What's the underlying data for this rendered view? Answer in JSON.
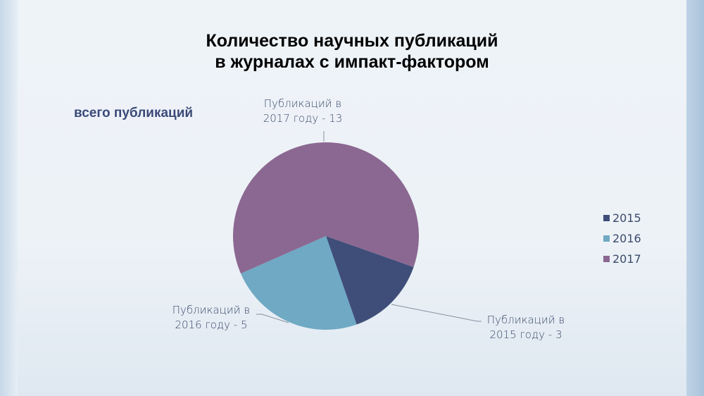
{
  "chart_data": {
    "type": "pie",
    "title": "Количество научных публикаций\nв журналах с импакт-фактором",
    "title_line1": "Количество научных публикаций",
    "title_line2": "в журналах с импакт-фактором",
    "subtitle": "всего публикаций",
    "categories": [
      "2015",
      "2016",
      "2017"
    ],
    "values": [
      3,
      5,
      13
    ],
    "colors": [
      "#3f4e78",
      "#6fa9c4",
      "#8b6891"
    ],
    "data_labels": [
      [
        "Публикаций в",
        "2015 году - 3"
      ],
      [
        "Публикаций в",
        "2016 году - 5"
      ],
      [
        "Публикаций в",
        "2017 году - 13"
      ]
    ],
    "legend_position": "right"
  }
}
